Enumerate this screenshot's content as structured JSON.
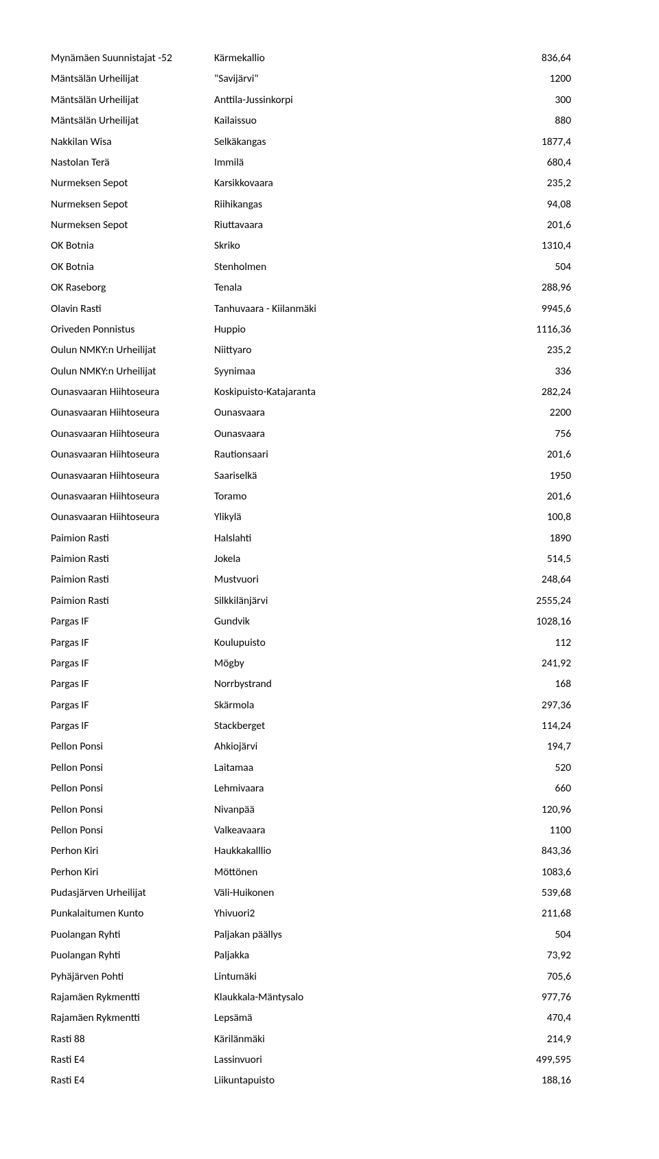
{
  "rows": [
    {
      "club": "Mynämäen Suunnistajat -52",
      "place": "Kärmekallio",
      "value": "836,64"
    },
    {
      "club": "Mäntsälän Urheilijat",
      "place": "\"Savijärvi\"",
      "value": "1200"
    },
    {
      "club": "Mäntsälän Urheilijat",
      "place": "Anttila-Jussinkorpi",
      "value": "300"
    },
    {
      "club": "Mäntsälän Urheilijat",
      "place": "Kailaissuo",
      "value": "880"
    },
    {
      "club": "Nakkilan Wisa",
      "place": "Selkäkangas",
      "value": "1877,4"
    },
    {
      "club": "Nastolan Terä",
      "place": "Immilä",
      "value": "680,4"
    },
    {
      "club": "Nurmeksen Sepot",
      "place": "Karsikkovaara",
      "value": "235,2"
    },
    {
      "club": "Nurmeksen Sepot",
      "place": "Riihikangas",
      "value": "94,08"
    },
    {
      "club": "Nurmeksen Sepot",
      "place": "Riuttavaara",
      "value": "201,6"
    },
    {
      "club": "OK Botnia",
      "place": "Skriko",
      "value": "1310,4"
    },
    {
      "club": "OK Botnia",
      "place": "Stenholmen",
      "value": "504"
    },
    {
      "club": "OK Raseborg",
      "place": "Tenala",
      "value": "288,96"
    },
    {
      "club": "Olavin Rasti",
      "place": "Tanhuvaara - Kiilanmäki",
      "value": "9945,6"
    },
    {
      "club": "Oriveden Ponnistus",
      "place": "Huppio",
      "value": "1116,36"
    },
    {
      "club": "Oulun NMKY:n Urheilijat",
      "place": "Niittyaro",
      "value": "235,2"
    },
    {
      "club": "Oulun NMKY:n Urheilijat",
      "place": "Syynimaa",
      "value": "336"
    },
    {
      "club": "Ounasvaaran Hiihtoseura",
      "place": "Koskipuisto-Katajaranta",
      "value": "282,24"
    },
    {
      "club": "Ounasvaaran Hiihtoseura",
      "place": "Ounasvaara",
      "value": "2200"
    },
    {
      "club": "Ounasvaaran Hiihtoseura",
      "place": "Ounasvaara",
      "value": "756"
    },
    {
      "club": "Ounasvaaran Hiihtoseura",
      "place": "Rautionsaari",
      "value": "201,6"
    },
    {
      "club": "Ounasvaaran Hiihtoseura",
      "place": "Saariselkä",
      "value": "1950"
    },
    {
      "club": "Ounasvaaran Hiihtoseura",
      "place": "Toramo",
      "value": "201,6"
    },
    {
      "club": "Ounasvaaran Hiihtoseura",
      "place": "Ylikylä",
      "value": "100,8"
    },
    {
      "club": "Paimion Rasti",
      "place": "Halslahti",
      "value": "1890"
    },
    {
      "club": "Paimion Rasti",
      "place": "Jokela",
      "value": "514,5"
    },
    {
      "club": "Paimion Rasti",
      "place": "Mustvuori",
      "value": "248,64"
    },
    {
      "club": "Paimion Rasti",
      "place": "Silkkilänjärvi",
      "value": "2555,24"
    },
    {
      "club": "Pargas IF",
      "place": "Gundvik",
      "value": "1028,16"
    },
    {
      "club": "Pargas IF",
      "place": "Koulupuisto",
      "value": "112"
    },
    {
      "club": "Pargas IF",
      "place": "Mögby",
      "value": "241,92"
    },
    {
      "club": "Pargas IF",
      "place": "Norrbystrand",
      "value": "168"
    },
    {
      "club": "Pargas IF",
      "place": "Skärmola",
      "value": "297,36"
    },
    {
      "club": "Pargas IF",
      "place": "Stackberget",
      "value": "114,24"
    },
    {
      "club": "Pellon Ponsi",
      "place": "Ahkiojärvi",
      "value": "194,7"
    },
    {
      "club": "Pellon Ponsi",
      "place": "Laitamaa",
      "value": "520"
    },
    {
      "club": "Pellon Ponsi",
      "place": "Lehmivaara",
      "value": "660"
    },
    {
      "club": "Pellon Ponsi",
      "place": "Nivanpää",
      "value": "120,96"
    },
    {
      "club": "Pellon Ponsi",
      "place": "Valkeavaara",
      "value": "1100"
    },
    {
      "club": "Perhon Kiri",
      "place": "Haukkakalllio",
      "value": "843,36"
    },
    {
      "club": "Perhon Kiri",
      "place": "Möttönen",
      "value": "1083,6"
    },
    {
      "club": "Pudasjärven Urheilijat",
      "place": "Väli-Huikonen",
      "value": "539,68"
    },
    {
      "club": "Punkalaitumen Kunto",
      "place": "Yhivuori2",
      "value": "211,68"
    },
    {
      "club": "Puolangan Ryhti",
      "place": "Paljakan päällys",
      "value": "504"
    },
    {
      "club": "Puolangan Ryhti",
      "place": "Paljakka",
      "value": "73,92"
    },
    {
      "club": "Pyhäjärven Pohti",
      "place": "Lintumäki",
      "value": "705,6"
    },
    {
      "club": "Rajamäen Rykmentti",
      "place": "Klaukkala-Mäntysalo",
      "value": "977,76"
    },
    {
      "club": "Rajamäen Rykmentti",
      "place": "Lepsämä",
      "value": "470,4"
    },
    {
      "club": "Rasti 88",
      "place": "Kärilänmäki",
      "value": "214,9"
    },
    {
      "club": "Rasti E4",
      "place": "Lassinvuori",
      "value": "499,595"
    },
    {
      "club": "Rasti E4",
      "place": "Liikuntapuisto",
      "value": "188,16"
    }
  ]
}
